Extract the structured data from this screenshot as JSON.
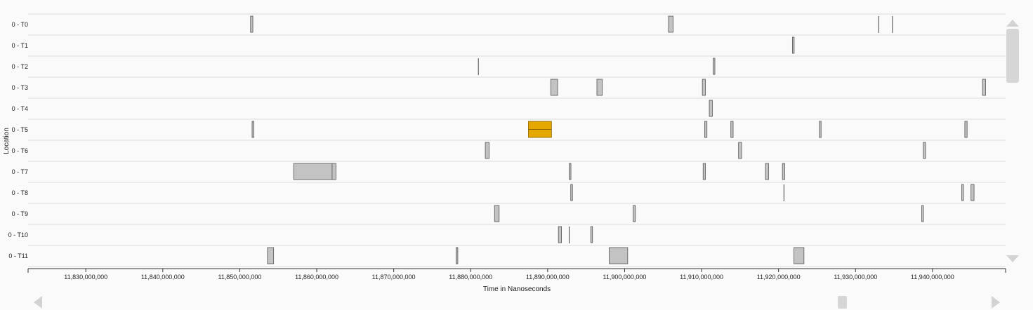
{
  "y_axis": {
    "title": "Location"
  },
  "x_axis": {
    "title": "Time in Nanoseconds",
    "range": [
      11822500000,
      11949500000
    ],
    "ticks": [
      {
        "value": 11830000000,
        "label": "11,830,000,000"
      },
      {
        "value": 11840000000,
        "label": "11,840,000,000"
      },
      {
        "value": 11850000000,
        "label": "11,850,000,000"
      },
      {
        "value": 11860000000,
        "label": "11,860,000,000"
      },
      {
        "value": 11870000000,
        "label": "11,870,000,000"
      },
      {
        "value": 11880000000,
        "label": "11,880,000,000"
      },
      {
        "value": 11890000000,
        "label": "11,890,000,000"
      },
      {
        "value": 11900000000,
        "label": "11,900,000,000"
      },
      {
        "value": 11910000000,
        "label": "11,910,000,000"
      },
      {
        "value": 11920000000,
        "label": "11,920,000,000"
      },
      {
        "value": 11930000000,
        "label": "11,930,000,000"
      },
      {
        "value": 11940000000,
        "label": "11,940,000,000"
      }
    ]
  },
  "colors": {
    "event": "#c3c3c3",
    "selected": "#e5a800",
    "scroll": "#d3d3d3"
  },
  "lanes": [
    {
      "label": "0 - T0",
      "events": [
        [
          11851.4,
          11851.7
        ],
        [
          11905.7,
          11906.3
        ],
        [
          11933.0,
          11933.0
        ],
        [
          11934.8,
          11934.8
        ]
      ]
    },
    {
      "label": "0 - T1",
      "events": [
        [
          11921.8,
          11921.9
        ]
      ]
    },
    {
      "label": "0 - T2",
      "events": [
        [
          11881.0,
          11881.0
        ],
        [
          11911.5,
          11911.7
        ]
      ]
    },
    {
      "label": "0 - T3",
      "events": [
        [
          11890.4,
          11891.3
        ],
        [
          11896.4,
          11897.1
        ],
        [
          11910.1,
          11910.5
        ],
        [
          11946.5,
          11946.9
        ]
      ]
    },
    {
      "label": "0 - T4",
      "events": [
        [
          11911.0,
          11911.4
        ]
      ]
    },
    {
      "label": "0 - T5",
      "events": [
        [
          11851.6,
          11851.8
        ],
        [
          11887.5,
          11890.5,
          true
        ],
        [
          11910.4,
          11910.7
        ],
        [
          11913.8,
          11914.1
        ],
        [
          11925.3,
          11925.5
        ],
        [
          11944.2,
          11944.5
        ]
      ]
    },
    {
      "label": "0 - T6",
      "events": [
        [
          11881.9,
          11882.4
        ],
        [
          11914.8,
          11915.2
        ],
        [
          11938.8,
          11939.1
        ]
      ]
    },
    {
      "label": "0 - T7",
      "events": [
        [
          11857.0,
          11862.0
        ],
        [
          11862.0,
          11862.5
        ],
        [
          11892.8,
          11893.0
        ],
        [
          11910.2,
          11910.5
        ],
        [
          11918.3,
          11918.7
        ],
        [
          11920.5,
          11920.8
        ]
      ]
    },
    {
      "label": "0 - T8",
      "events": [
        [
          11893.0,
          11893.2
        ],
        [
          11920.7,
          11920.7
        ],
        [
          11943.8,
          11943.9
        ],
        [
          11945.0,
          11945.4
        ]
      ]
    },
    {
      "label": "0 - T9",
      "events": [
        [
          11883.1,
          11883.7
        ],
        [
          11901.1,
          11901.4
        ],
        [
          11938.6,
          11938.8
        ]
      ]
    },
    {
      "label": "0 - T10",
      "events": [
        [
          11891.4,
          11891.8
        ],
        [
          11892.8,
          11892.8
        ],
        [
          11895.6,
          11895.8
        ]
      ]
    },
    {
      "label": "0 - T11",
      "events": [
        [
          11853.6,
          11854.4
        ],
        [
          11878.1,
          11878.3
        ],
        [
          11898.0,
          11900.4
        ],
        [
          11922.0,
          11923.3
        ]
      ]
    }
  ],
  "scrollbars": {
    "vertical": {
      "up_icon": "triangle-up",
      "down_icon": "triangle-down",
      "position": 0.0
    },
    "horizontal": {
      "left_icon": "triangle-left",
      "right_icon": "triangle-right",
      "position": 0.0
    }
  }
}
